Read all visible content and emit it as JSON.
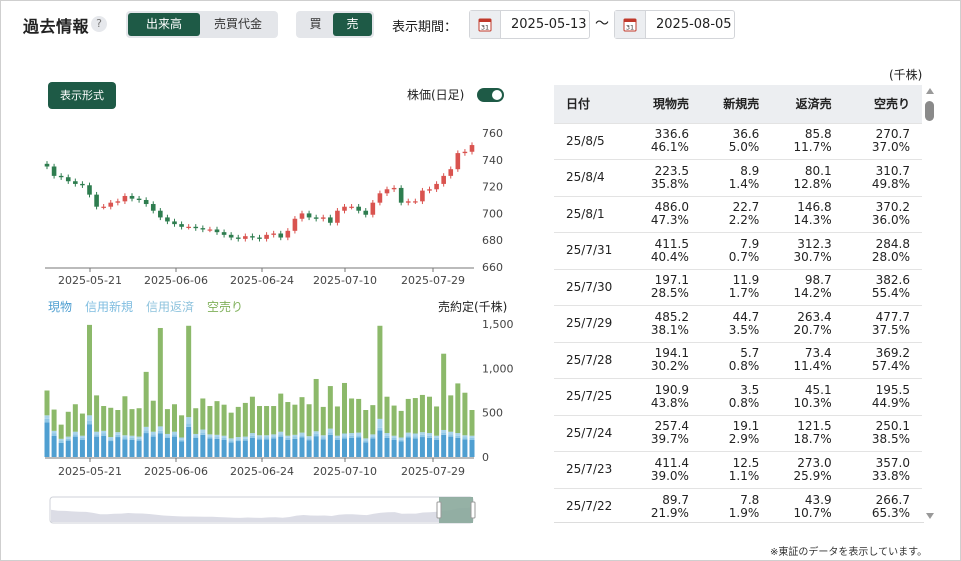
{
  "header": {
    "title": "過去情報",
    "help": "?",
    "metric_options": [
      "出来高",
      "売買代金"
    ],
    "metric_selected": "出来高",
    "side_options": [
      "買",
      "売"
    ],
    "side_selected": "売",
    "period_label": "表示期間：",
    "date_from": "2025-05-13",
    "separator": "〜",
    "date_to": "2025-08-05"
  },
  "chart_controls": {
    "format_button": "表示形式",
    "toggle_label": "株価(日足)",
    "toggle_on": true
  },
  "chart_data": [
    {
      "type": "candlestick",
      "title": "",
      "y_ticks": [
        "760",
        "740",
        "720",
        "700",
        "680",
        "660"
      ],
      "ylim": [
        660,
        760
      ],
      "x_tick_labels": [
        "2025-05-21",
        "2025-06-06",
        "2025-06-24",
        "2025-07-10",
        "2025-07-29"
      ],
      "close": [
        735,
        728,
        727,
        724,
        722,
        721,
        714,
        705,
        705,
        708,
        709,
        713,
        711,
        710,
        707,
        702,
        697,
        694,
        692,
        690,
        690,
        689,
        688,
        688,
        686,
        684,
        682,
        681,
        683,
        682,
        681,
        684,
        685,
        682,
        687,
        696,
        700,
        697,
        696,
        697,
        693,
        702,
        705,
        705,
        702,
        699,
        708,
        715,
        718,
        719,
        708,
        709,
        709,
        717,
        718,
        722,
        728,
        733,
        745,
        746,
        751
      ],
      "up_color": "#d9534f",
      "down_color": "#2e7d4f"
    },
    {
      "type": "stacked_bar",
      "title": "",
      "ylabel": "売約定(千株)",
      "y_ticks": [
        "1,500",
        "1,000",
        "500",
        "0"
      ],
      "ylim": [
        0,
        1500
      ],
      "x_tick_labels": [
        "2025-05-21",
        "2025-06-06",
        "2025-06-24",
        "2025-07-10",
        "2025-07-29"
      ],
      "series": [
        {
          "name": "現物",
          "color": "#4f9fd1",
          "values": [
            390,
            240,
            160,
            185,
            230,
            195,
            370,
            230,
            240,
            180,
            225,
            200,
            195,
            185,
            270,
            230,
            265,
            215,
            230,
            175,
            340,
            215,
            250,
            210,
            205,
            195,
            165,
            180,
            185,
            215,
            200,
            200,
            210,
            230,
            195,
            205,
            220,
            190,
            235,
            200,
            250,
            195,
            210,
            215,
            220,
            165,
            210,
            300,
            215,
            195,
            175,
            220,
            210,
            225,
            215,
            195,
            250,
            230,
            215,
            200,
            195
          ]
        },
        {
          "name": "信用新規",
          "color": "#8fc7e6",
          "values": [
            40,
            25,
            20,
            20,
            25,
            20,
            40,
            25,
            25,
            20,
            25,
            20,
            20,
            20,
            30,
            25,
            30,
            20,
            25,
            20,
            40,
            20,
            25,
            20,
            20,
            20,
            20,
            20,
            20,
            25,
            20,
            20,
            20,
            25,
            20,
            20,
            25,
            20,
            25,
            20,
            30,
            20,
            25,
            25,
            25,
            20,
            20,
            30,
            25,
            20,
            20,
            25,
            25,
            25,
            25,
            20,
            25,
            25,
            25,
            20,
            20
          ]
        },
        {
          "name": "信用返済",
          "color": "#a7d3ea",
          "values": [
            40,
            30,
            25,
            25,
            30,
            25,
            60,
            30,
            30,
            25,
            30,
            25,
            25,
            25,
            40,
            30,
            50,
            25,
            30,
            25,
            70,
            25,
            35,
            25,
            25,
            25,
            25,
            25,
            25,
            30,
            25,
            25,
            25,
            30,
            25,
            25,
            30,
            25,
            30,
            25,
            40,
            25,
            30,
            30,
            30,
            25,
            25,
            100,
            30,
            25,
            25,
            30,
            30,
            30,
            30,
            25,
            30,
            30,
            30,
            25,
            25
          ]
        },
        {
          "name": "空売り",
          "color": "#8cb96a",
          "values": [
            280,
            240,
            160,
            280,
            310,
            250,
            1020,
            410,
            280,
            330,
            250,
            440,
            300,
            320,
            620,
            350,
            1110,
            280,
            310,
            250,
            1030,
            290,
            350,
            320,
            380,
            350,
            290,
            340,
            380,
            410,
            330,
            330,
            320,
            430,
            380,
            340,
            400,
            360,
            590,
            320,
            480,
            330,
            570,
            390,
            380,
            320,
            330,
            1050,
            410,
            340,
            300,
            380,
            400,
            420,
            410,
            330,
            860,
            410,
            560,
            480,
            290
          ]
        }
      ]
    }
  ],
  "table": {
    "unit": "(千株)",
    "columns": [
      "日付",
      "現物売",
      "新規売",
      "返済売",
      "空売り"
    ],
    "rows": [
      {
        "date": "25/8/5",
        "cells": [
          [
            "336.6",
            "46.1%"
          ],
          [
            "36.6",
            "5.0%"
          ],
          [
            "85.8",
            "11.7%"
          ],
          [
            "270.7",
            "37.0%"
          ]
        ]
      },
      {
        "date": "25/8/4",
        "cells": [
          [
            "223.5",
            "35.8%"
          ],
          [
            "8.9",
            "1.4%"
          ],
          [
            "80.1",
            "12.8%"
          ],
          [
            "310.7",
            "49.8%"
          ]
        ]
      },
      {
        "date": "25/8/1",
        "cells": [
          [
            "486.0",
            "47.3%"
          ],
          [
            "22.7",
            "2.2%"
          ],
          [
            "146.8",
            "14.3%"
          ],
          [
            "370.2",
            "36.0%"
          ]
        ]
      },
      {
        "date": "25/7/31",
        "cells": [
          [
            "411.5",
            "40.4%"
          ],
          [
            "7.9",
            "0.7%"
          ],
          [
            "312.3",
            "30.7%"
          ],
          [
            "284.8",
            "28.0%"
          ]
        ]
      },
      {
        "date": "25/7/30",
        "cells": [
          [
            "197.1",
            "28.5%"
          ],
          [
            "11.9",
            "1.7%"
          ],
          [
            "98.7",
            "14.2%"
          ],
          [
            "382.6",
            "55.4%"
          ]
        ]
      },
      {
        "date": "25/7/29",
        "cells": [
          [
            "485.2",
            "38.1%"
          ],
          [
            "44.7",
            "3.5%"
          ],
          [
            "263.4",
            "20.7%"
          ],
          [
            "477.7",
            "37.5%"
          ]
        ]
      },
      {
        "date": "25/7/28",
        "cells": [
          [
            "194.1",
            "30.2%"
          ],
          [
            "5.7",
            "0.8%"
          ],
          [
            "73.4",
            "11.4%"
          ],
          [
            "369.2",
            "57.4%"
          ]
        ]
      },
      {
        "date": "25/7/25",
        "cells": [
          [
            "190.9",
            "43.8%"
          ],
          [
            "3.5",
            "0.8%"
          ],
          [
            "45.1",
            "10.3%"
          ],
          [
            "195.5",
            "44.9%"
          ]
        ]
      },
      {
        "date": "25/7/24",
        "cells": [
          [
            "257.4",
            "39.7%"
          ],
          [
            "19.1",
            "2.9%"
          ],
          [
            "121.5",
            "18.7%"
          ],
          [
            "250.1",
            "38.5%"
          ]
        ]
      },
      {
        "date": "25/7/23",
        "cells": [
          [
            "411.4",
            "39.0%"
          ],
          [
            "12.5",
            "1.1%"
          ],
          [
            "273.0",
            "25.9%"
          ],
          [
            "357.0",
            "33.8%"
          ]
        ]
      },
      {
        "date": "25/7/22",
        "cells": [
          [
            "89.7",
            "21.9%"
          ],
          [
            "7.8",
            "1.9%"
          ],
          [
            "43.9",
            "10.7%"
          ],
          [
            "266.7",
            "65.3%"
          ]
        ]
      }
    ]
  },
  "footer": {
    "note": "※東証のデータを表示しています。"
  }
}
